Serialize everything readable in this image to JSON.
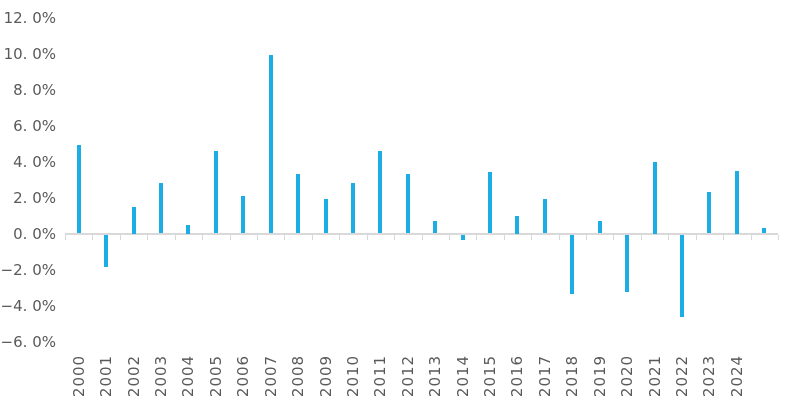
{
  "chart_data": {
    "type": "bar",
    "title": "",
    "xlabel": "",
    "ylabel": "",
    "unit": "%",
    "grid": false,
    "legend": null,
    "background_color": "#ffffff",
    "bar_color": "#1cade4",
    "axis_color": "#d9d9d9",
    "tick_label_color": "#595959",
    "ylim": [
      -6,
      12
    ],
    "ytick_step": 2,
    "yticks": [
      12,
      10,
      8,
      6,
      4,
      2,
      0,
      -2,
      -4,
      -6
    ],
    "ytick_labels": [
      "12. 0%",
      "10. 0%",
      "8. 0%",
      "6. 0%",
      "4. 0%",
      "2. 0%",
      "0. 0%",
      "−2. 0%",
      "−4. 0%",
      "−6. 0%"
    ],
    "categories": [
      "2000",
      "2001",
      "2002",
      "2003",
      "2004",
      "2005",
      "2006",
      "2007",
      "2008",
      "2009",
      "2010",
      "2011",
      "2012",
      "2013",
      "2014",
      "2015",
      "2016",
      "2017",
      "2018",
      "2019",
      "2020",
      "2021",
      "2022",
      "2023",
      "2024",
      ""
    ],
    "values": [
      4.9,
      -1.8,
      1.5,
      2.8,
      0.5,
      4.6,
      2.1,
      9.9,
      3.3,
      1.9,
      2.8,
      4.6,
      3.3,
      0.7,
      -0.3,
      3.4,
      1.0,
      1.9,
      -3.3,
      0.7,
      -3.2,
      4.0,
      -4.6,
      2.3,
      3.5,
      0.3
    ]
  }
}
